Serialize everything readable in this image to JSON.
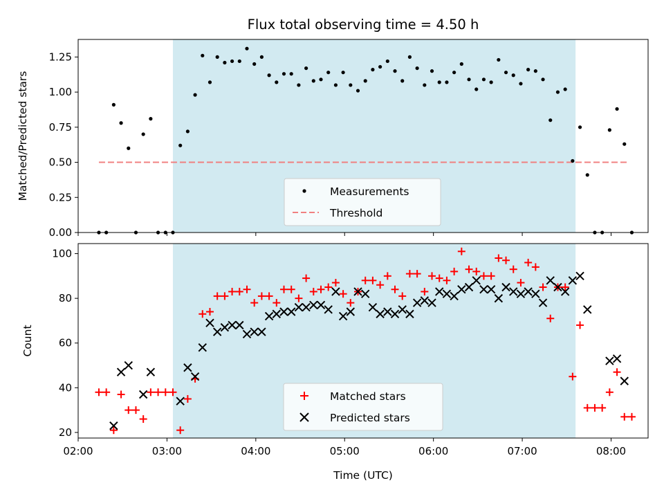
{
  "chart_data": [
    {
      "type": "scatter",
      "title": "Flux total observing time = 4.50 h",
      "ylabel": "Matched/Predicted stars",
      "xlabel": "",
      "xlim": [
        "02:00",
        "08:25"
      ],
      "ylim": [
        0,
        1.375
      ],
      "yticks": [
        "0.00",
        "0.25",
        "0.50",
        "0.75",
        "1.00",
        "1.25"
      ],
      "shaded_span": [
        "03:04",
        "07:36"
      ],
      "legend": {
        "placement": "lower-center",
        "entries": [
          "Measurements",
          "Threshold"
        ]
      },
      "threshold": {
        "name": "Threshold",
        "value": 0.5,
        "x": [
          "02:14",
          "08:12"
        ],
        "color": "#f08080"
      },
      "series": [
        {
          "name": "Measurements",
          "marker": "dot",
          "color": "#000000",
          "points": [
            [
              "02:14",
              0.0
            ],
            [
              "02:19",
              0.0
            ],
            [
              "02:24",
              0.91
            ],
            [
              "02:29",
              0.78
            ],
            [
              "02:34",
              0.6
            ],
            [
              "02:39",
              0.0
            ],
            [
              "02:44",
              0.7
            ],
            [
              "02:49",
              0.81
            ],
            [
              "02:54",
              0.0
            ],
            [
              "02:59",
              0.0
            ],
            [
              "03:04",
              0.0
            ],
            [
              "03:09",
              0.62
            ],
            [
              "03:14",
              0.72
            ],
            [
              "03:19",
              0.98
            ],
            [
              "03:24",
              1.26
            ],
            [
              "03:29",
              1.07
            ],
            [
              "03:34",
              1.25
            ],
            [
              "03:39",
              1.21
            ],
            [
              "03:44",
              1.22
            ],
            [
              "03:49",
              1.22
            ],
            [
              "03:54",
              1.31
            ],
            [
              "03:59",
              1.2
            ],
            [
              "04:04",
              1.25
            ],
            [
              "04:09",
              1.12
            ],
            [
              "04:14",
              1.07
            ],
            [
              "04:19",
              1.13
            ],
            [
              "04:24",
              1.13
            ],
            [
              "04:29",
              1.05
            ],
            [
              "04:34",
              1.17
            ],
            [
              "04:39",
              1.08
            ],
            [
              "04:44",
              1.09
            ],
            [
              "04:49",
              1.14
            ],
            [
              "04:54",
              1.05
            ],
            [
              "04:59",
              1.14
            ],
            [
              "05:04",
              1.05
            ],
            [
              "05:09",
              1.01
            ],
            [
              "05:14",
              1.08
            ],
            [
              "05:19",
              1.16
            ],
            [
              "05:24",
              1.18
            ],
            [
              "05:29",
              1.22
            ],
            [
              "05:34",
              1.15
            ],
            [
              "05:39",
              1.08
            ],
            [
              "05:44",
              1.25
            ],
            [
              "05:49",
              1.17
            ],
            [
              "05:54",
              1.05
            ],
            [
              "05:59",
              1.15
            ],
            [
              "06:04",
              1.07
            ],
            [
              "06:09",
              1.07
            ],
            [
              "06:14",
              1.14
            ],
            [
              "06:19",
              1.2
            ],
            [
              "06:24",
              1.09
            ],
            [
              "06:29",
              1.02
            ],
            [
              "06:34",
              1.09
            ],
            [
              "06:39",
              1.07
            ],
            [
              "06:44",
              1.23
            ],
            [
              "06:49",
              1.14
            ],
            [
              "06:54",
              1.12
            ],
            [
              "06:59",
              1.06
            ],
            [
              "07:04",
              1.16
            ],
            [
              "07:09",
              1.15
            ],
            [
              "07:14",
              1.09
            ],
            [
              "07:19",
              0.8
            ],
            [
              "07:24",
              1.0
            ],
            [
              "07:29",
              1.02
            ],
            [
              "07:34",
              0.51
            ],
            [
              "07:39",
              0.75
            ],
            [
              "07:44",
              0.41
            ],
            [
              "07:49",
              0.0
            ],
            [
              "07:54",
              0.0
            ],
            [
              "07:59",
              0.73
            ],
            [
              "08:04",
              0.88
            ],
            [
              "08:09",
              0.63
            ],
            [
              "08:14",
              0.0
            ]
          ]
        }
      ]
    },
    {
      "type": "scatter",
      "title": "",
      "xlabel": "Time (UTC)",
      "ylabel": "Count",
      "xlim": [
        "02:00",
        "08:25"
      ],
      "ylim": [
        17.5,
        104.5
      ],
      "xticks": [
        "02:00",
        "03:00",
        "04:00",
        "05:00",
        "06:00",
        "07:00",
        "08:00"
      ],
      "yticks": [
        "20",
        "40",
        "60",
        "80",
        "100"
      ],
      "shaded_span": [
        "03:04",
        "07:36"
      ],
      "legend": {
        "placement": "lower-center",
        "entries": [
          "Matched stars",
          "Predicted stars"
        ]
      },
      "series": [
        {
          "name": "Matched stars",
          "marker": "plus",
          "color": "#ff0000",
          "points": [
            [
              "02:14",
              38
            ],
            [
              "02:19",
              38
            ],
            [
              "02:24",
              21
            ],
            [
              "02:29",
              37
            ],
            [
              "02:34",
              30
            ],
            [
              "02:39",
              30
            ],
            [
              "02:44",
              26
            ],
            [
              "02:49",
              38
            ],
            [
              "02:54",
              38
            ],
            [
              "02:59",
              38
            ],
            [
              "03:04",
              38
            ],
            [
              "03:09",
              21
            ],
            [
              "03:14",
              35
            ],
            [
              "03:19",
              44
            ],
            [
              "03:24",
              73
            ],
            [
              "03:29",
              74
            ],
            [
              "03:34",
              81
            ],
            [
              "03:39",
              81
            ],
            [
              "03:44",
              83
            ],
            [
              "03:49",
              83
            ],
            [
              "03:54",
              84
            ],
            [
              "03:59",
              78
            ],
            [
              "04:04",
              81
            ],
            [
              "04:09",
              81
            ],
            [
              "04:14",
              78
            ],
            [
              "04:19",
              84
            ],
            [
              "04:24",
              84
            ],
            [
              "04:29",
              80
            ],
            [
              "04:34",
              89
            ],
            [
              "04:39",
              83
            ],
            [
              "04:44",
              84
            ],
            [
              "04:49",
              85
            ],
            [
              "04:54",
              87
            ],
            [
              "04:59",
              82
            ],
            [
              "05:04",
              78
            ],
            [
              "05:09",
              83
            ],
            [
              "05:14",
              88
            ],
            [
              "05:19",
              88
            ],
            [
              "05:24",
              86
            ],
            [
              "05:29",
              90
            ],
            [
              "05:34",
              84
            ],
            [
              "05:39",
              81
            ],
            [
              "05:44",
              91
            ],
            [
              "05:49",
              91
            ],
            [
              "05:54",
              83
            ],
            [
              "05:59",
              90
            ],
            [
              "06:04",
              89
            ],
            [
              "06:09",
              88
            ],
            [
              "06:14",
              92
            ],
            [
              "06:19",
              101
            ],
            [
              "06:24",
              93
            ],
            [
              "06:29",
              92
            ],
            [
              "06:34",
              90
            ],
            [
              "06:39",
              90
            ],
            [
              "06:44",
              98
            ],
            [
              "06:49",
              97
            ],
            [
              "06:54",
              93
            ],
            [
              "06:59",
              87
            ],
            [
              "07:04",
              96
            ],
            [
              "07:09",
              94
            ],
            [
              "07:14",
              85
            ],
            [
              "07:19",
              71
            ],
            [
              "07:24",
              85
            ],
            [
              "07:29",
              85
            ],
            [
              "07:34",
              45
            ],
            [
              "07:39",
              68
            ],
            [
              "07:44",
              31
            ],
            [
              "07:49",
              31
            ],
            [
              "07:54",
              31
            ],
            [
              "07:59",
              38
            ],
            [
              "08:04",
              47
            ],
            [
              "08:09",
              27
            ],
            [
              "08:14",
              27
            ]
          ]
        },
        {
          "name": "Predicted stars",
          "marker": "x",
          "color": "#000000",
          "points": [
            [
              "02:24",
              23
            ],
            [
              "02:29",
              47
            ],
            [
              "02:34",
              50
            ],
            [
              "02:44",
              37
            ],
            [
              "02:49",
              47
            ],
            [
              "03:09",
              34
            ],
            [
              "03:14",
              49
            ],
            [
              "03:19",
              45
            ],
            [
              "03:24",
              58
            ],
            [
              "03:29",
              69
            ],
            [
              "03:34",
              65
            ],
            [
              "03:39",
              67
            ],
            [
              "03:44",
              68
            ],
            [
              "03:49",
              68
            ],
            [
              "03:54",
              64
            ],
            [
              "03:59",
              65
            ],
            [
              "04:04",
              65
            ],
            [
              "04:09",
              72
            ],
            [
              "04:14",
              73
            ],
            [
              "04:19",
              74
            ],
            [
              "04:24",
              74
            ],
            [
              "04:29",
              76
            ],
            [
              "04:34",
              76
            ],
            [
              "04:39",
              77
            ],
            [
              "04:44",
              77
            ],
            [
              "04:49",
              75
            ],
            [
              "04:54",
              83
            ],
            [
              "04:59",
              72
            ],
            [
              "05:04",
              74
            ],
            [
              "05:09",
              83
            ],
            [
              "05:14",
              82
            ],
            [
              "05:19",
              76
            ],
            [
              "05:24",
              73
            ],
            [
              "05:29",
              74
            ],
            [
              "05:34",
              73
            ],
            [
              "05:39",
              75
            ],
            [
              "05:44",
              73
            ],
            [
              "05:49",
              78
            ],
            [
              "05:54",
              79
            ],
            [
              "05:59",
              78
            ],
            [
              "06:04",
              83
            ],
            [
              "06:09",
              82
            ],
            [
              "06:14",
              81
            ],
            [
              "06:19",
              84
            ],
            [
              "06:24",
              85
            ],
            [
              "06:29",
              88
            ],
            [
              "06:34",
              84
            ],
            [
              "06:39",
              84
            ],
            [
              "06:44",
              80
            ],
            [
              "06:49",
              85
            ],
            [
              "06:54",
              83
            ],
            [
              "06:59",
              82
            ],
            [
              "07:04",
              83
            ],
            [
              "07:09",
              82
            ],
            [
              "07:14",
              78
            ],
            [
              "07:19",
              88
            ],
            [
              "07:24",
              85
            ],
            [
              "07:29",
              83
            ],
            [
              "07:34",
              88
            ],
            [
              "07:39",
              90
            ],
            [
              "07:44",
              75
            ],
            [
              "07:59",
              52
            ],
            [
              "08:04",
              53
            ],
            [
              "08:09",
              43
            ]
          ]
        }
      ]
    }
  ]
}
